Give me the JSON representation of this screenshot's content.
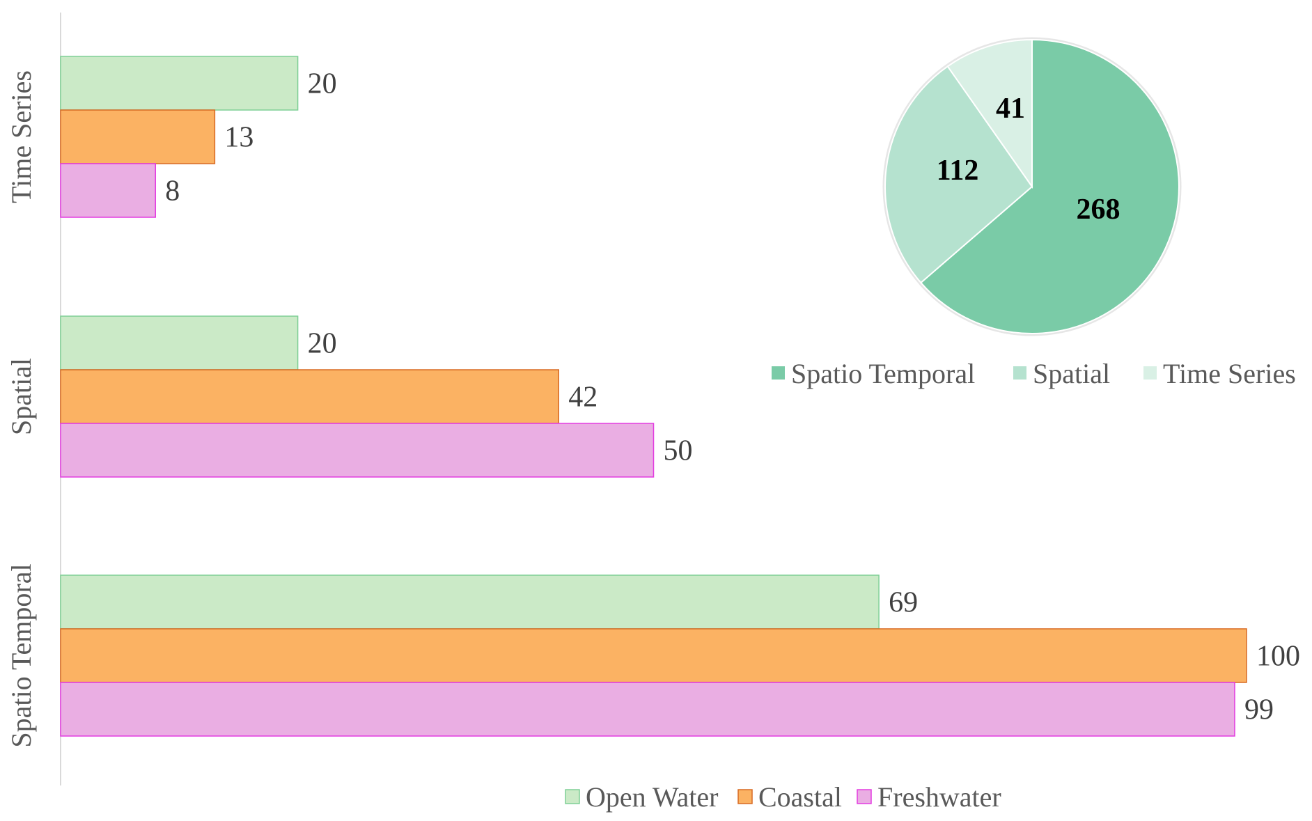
{
  "chart_data": [
    {
      "type": "bar",
      "orientation": "horizontal",
      "categories": [
        "Spatio Temporal",
        "Spatial",
        "Time Series"
      ],
      "series": [
        {
          "name": "Open Water",
          "values": [
            69,
            20,
            20
          ],
          "color": "#cbeac7",
          "stroke": "#7fcf96"
        },
        {
          "name": "Coastal",
          "values": [
            100,
            42,
            13
          ],
          "color": "#fbb263",
          "stroke": "#d86a23"
        },
        {
          "name": "Freshwater",
          "values": [
            99,
            50,
            8
          ],
          "color": "#eaaee3",
          "stroke": "#e33be0"
        }
      ],
      "xlim": [
        0,
        100
      ],
      "grid": false,
      "data_labels": true,
      "legend": "bottom"
    },
    {
      "type": "pie",
      "labels": [
        "Spatio Temporal",
        "Spatial",
        "Time Series"
      ],
      "values": [
        268,
        112,
        41
      ],
      "colors": [
        "#7acba7",
        "#b5e2cf",
        "#d9f0e5"
      ],
      "data_labels": true,
      "legend": "bottom"
    }
  ]
}
